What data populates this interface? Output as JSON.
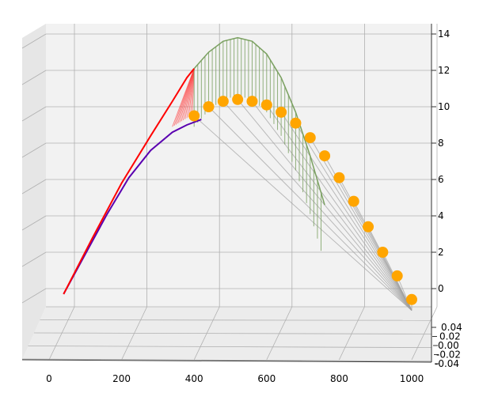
{
  "chart_data": {
    "type": "3d-line-scatter",
    "title": "",
    "axes": {
      "x": {
        "label": "",
        "ticks": [
          "0",
          "200",
          "400",
          "600",
          "800",
          "1000"
        ],
        "range": [
          -70,
          1040
        ]
      },
      "y": {
        "label": "",
        "ticks": [
          "0.04",
          "0.02",
          "0.00",
          "-0.02",
          "-0.04"
        ],
        "range": [
          -0.04,
          0.04
        ]
      },
      "z": {
        "label": "",
        "ticks": [
          "0",
          "2",
          "4",
          "6",
          "8",
          "10",
          "12",
          "14"
        ],
        "range": [
          -1,
          14
        ]
      }
    },
    "grid": true,
    "legend": "none",
    "series": [
      {
        "kind": "line",
        "color": "#5a00b0",
        "x": [
          40,
          100,
          160,
          220,
          280,
          340,
          380,
          420
        ],
        "z": [
          -0.3,
          1.9,
          4.1,
          6.1,
          7.6,
          8.6,
          9.0,
          9.3
        ]
      },
      {
        "kind": "line",
        "color": "#ff0000",
        "x": [
          40,
          120,
          200,
          280,
          340,
          380,
          400
        ],
        "z": [
          -0.3,
          2.8,
          5.8,
          8.4,
          10.3,
          11.6,
          12.1
        ]
      },
      {
        "kind": "line",
        "color": "#7aa060",
        "x": [
          400,
          440,
          480,
          520,
          560,
          600,
          640,
          680,
          720,
          760
        ],
        "z": [
          12.1,
          13.0,
          13.6,
          13.8,
          13.6,
          12.9,
          11.6,
          9.7,
          7.3,
          4.6
        ]
      },
      {
        "kind": "scatter",
        "color": "#ffa500",
        "x": [
          400,
          440,
          480,
          520,
          560,
          600,
          640,
          680,
          720,
          760,
          800,
          840,
          880,
          920,
          960,
          1000
        ],
        "z": [
          9.5,
          10.0,
          10.3,
          10.4,
          10.3,
          10.1,
          9.7,
          9.1,
          8.3,
          7.3,
          6.1,
          4.8,
          3.4,
          2.0,
          0.7,
          -0.6
        ]
      }
    ]
  }
}
